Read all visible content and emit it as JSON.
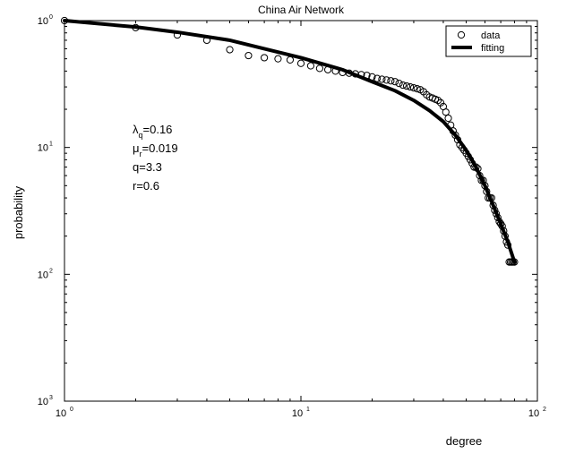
{
  "chart_data": {
    "type": "scatter",
    "title": "China Air Network",
    "xlabel": "degree",
    "ylabel": "probability",
    "xscale": "log",
    "yscale": "log",
    "xlim": [
      1,
      100
    ],
    "ylim": [
      0.001,
      1
    ],
    "x_ticks": [
      {
        "value": 1,
        "base": "10",
        "exp": "0"
      },
      {
        "value": 10,
        "base": "10",
        "exp": "1"
      },
      {
        "value": 100,
        "base": "10",
        "exp": "2"
      }
    ],
    "y_ticks": [
      {
        "value": 1,
        "base": "10",
        "exp": "0"
      },
      {
        "value": 0.1,
        "base": "10",
        "exp": "1"
      },
      {
        "value": 0.01,
        "base": "10",
        "exp": "2"
      },
      {
        "value": 0.001,
        "base": "10",
        "exp": "3"
      }
    ],
    "grid": false,
    "legend_position": "top-right",
    "series": [
      {
        "name": "data",
        "style": "open-circle",
        "color": "#000000",
        "points": [
          [
            1,
            1.0
          ],
          [
            2,
            0.88
          ],
          [
            3,
            0.77
          ],
          [
            4,
            0.7
          ],
          [
            5,
            0.59
          ],
          [
            6,
            0.53
          ],
          [
            7,
            0.51
          ],
          [
            8,
            0.5
          ],
          [
            9,
            0.49
          ],
          [
            10,
            0.46
          ],
          [
            11,
            0.44
          ],
          [
            12,
            0.42
          ],
          [
            13,
            0.41
          ],
          [
            14,
            0.4
          ],
          [
            15,
            0.39
          ],
          [
            16,
            0.385
          ],
          [
            17,
            0.38
          ],
          [
            18,
            0.375
          ],
          [
            19,
            0.37
          ],
          [
            20,
            0.36
          ],
          [
            21,
            0.35
          ],
          [
            22,
            0.345
          ],
          [
            23,
            0.34
          ],
          [
            24,
            0.335
          ],
          [
            25,
            0.33
          ],
          [
            26,
            0.32
          ],
          [
            27,
            0.31
          ],
          [
            28,
            0.305
          ],
          [
            29,
            0.3
          ],
          [
            30,
            0.295
          ],
          [
            31,
            0.29
          ],
          [
            32,
            0.285
          ],
          [
            33,
            0.275
          ],
          [
            34,
            0.26
          ],
          [
            35,
            0.25
          ],
          [
            36,
            0.245
          ],
          [
            37,
            0.24
          ],
          [
            38,
            0.235
          ],
          [
            39,
            0.225
          ],
          [
            40,
            0.21
          ],
          [
            41,
            0.19
          ],
          [
            42,
            0.17
          ],
          [
            43,
            0.15
          ],
          [
            44,
            0.135
          ],
          [
            45,
            0.125
          ],
          [
            46,
            0.115
          ],
          [
            47,
            0.105
          ],
          [
            48,
            0.1
          ],
          [
            49,
            0.095
          ],
          [
            50,
            0.09
          ],
          [
            51,
            0.085
          ],
          [
            52,
            0.08
          ],
          [
            53,
            0.075
          ],
          [
            54,
            0.07
          ],
          [
            55,
            0.07
          ],
          [
            56,
            0.068
          ],
          [
            57,
            0.06
          ],
          [
            58,
            0.055
          ],
          [
            59,
            0.055
          ],
          [
            60,
            0.05
          ],
          [
            61,
            0.045
          ],
          [
            62,
            0.04
          ],
          [
            63,
            0.04
          ],
          [
            64,
            0.04
          ],
          [
            65,
            0.035
          ],
          [
            66,
            0.032
          ],
          [
            67,
            0.03
          ],
          [
            68,
            0.028
          ],
          [
            69,
            0.026
          ],
          [
            70,
            0.025
          ],
          [
            71,
            0.024
          ],
          [
            72,
            0.022
          ],
          [
            73,
            0.02
          ],
          [
            74,
            0.018
          ],
          [
            75,
            0.017
          ],
          [
            76,
            0.0125
          ],
          [
            77,
            0.0125
          ],
          [
            78,
            0.0125
          ],
          [
            79,
            0.0125
          ],
          [
            80,
            0.0125
          ]
        ]
      },
      {
        "name": "fitting",
        "style": "thick-line",
        "color": "#000000",
        "points": [
          [
            1,
            1.0
          ],
          [
            2,
            0.89
          ],
          [
            3,
            0.81
          ],
          [
            5,
            0.7
          ],
          [
            7,
            0.6
          ],
          [
            10,
            0.51
          ],
          [
            15,
            0.41
          ],
          [
            20,
            0.33
          ],
          [
            25,
            0.28
          ],
          [
            30,
            0.235
          ],
          [
            35,
            0.195
          ],
          [
            40,
            0.16
          ],
          [
            45,
            0.125
          ],
          [
            50,
            0.095
          ],
          [
            55,
            0.07
          ],
          [
            60,
            0.05
          ],
          [
            65,
            0.035
          ],
          [
            70,
            0.025
          ],
          [
            75,
            0.018
          ],
          [
            80,
            0.0125
          ]
        ]
      }
    ],
    "annotations": [
      {
        "base": "λ",
        "sub": "q",
        "value": "=0.16"
      },
      {
        "base": "μ",
        "sub": "r",
        "value": "=0.019"
      },
      {
        "base": "q=3.3",
        "sub": "",
        "value": ""
      },
      {
        "base": "r=0.6",
        "sub": "",
        "value": ""
      }
    ]
  }
}
